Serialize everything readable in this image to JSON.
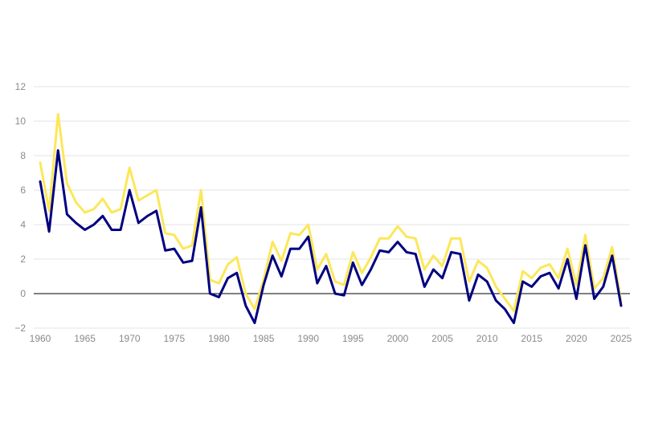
{
  "chart_data": {
    "type": "line",
    "title": "",
    "xlabel": "",
    "ylabel": "",
    "xlim": [
      1960,
      2025
    ],
    "ylim": [
      -2,
      12
    ],
    "x_ticks": [
      1960,
      1965,
      1970,
      1975,
      1980,
      1985,
      1990,
      1995,
      2000,
      2005,
      2010,
      2015,
      2020,
      2025
    ],
    "y_ticks": [
      -2,
      0,
      2,
      4,
      6,
      8,
      10,
      12
    ],
    "y_tick_labels": [
      "−2",
      "0",
      "2",
      "4",
      "6",
      "8",
      "10",
      "12"
    ],
    "grid": true,
    "zero_line": true,
    "legend": "none",
    "x": [
      1960,
      1961,
      1962,
      1963,
      1964,
      1965,
      1966,
      1967,
      1968,
      1969,
      1970,
      1971,
      1972,
      1973,
      1974,
      1975,
      1976,
      1977,
      1978,
      1979,
      1980,
      1981,
      1982,
      1983,
      1984,
      1985,
      1986,
      1987,
      1988,
      1989,
      1990,
      1991,
      1992,
      1993,
      1994,
      1995,
      1996,
      1997,
      1998,
      1999,
      2000,
      2001,
      2002,
      2003,
      2004,
      2005,
      2006,
      2007,
      2008,
      2009,
      2010,
      2011,
      2012,
      2013,
      2014,
      2015,
      2016,
      2017,
      2018,
      2019,
      2020,
      2021,
      2022,
      2023,
      2024,
      2025
    ],
    "series": [
      {
        "color": "#fce75a",
        "values": [
          7.6,
          4.8,
          10.4,
          6.4,
          5.3,
          4.7,
          4.9,
          5.5,
          4.7,
          4.9,
          7.3,
          5.4,
          5.7,
          6.0,
          3.5,
          3.4,
          2.6,
          2.8,
          6.0,
          0.8,
          0.6,
          1.7,
          2.1,
          0.0,
          -0.9,
          0.8,
          3.0,
          1.9,
          3.5,
          3.4,
          4.0,
          1.4,
          2.3,
          0.7,
          0.5,
          2.4,
          1.2,
          2.1,
          3.2,
          3.2,
          3.9,
          3.3,
          3.2,
          1.4,
          2.2,
          1.6,
          3.2,
          3.2,
          0.7,
          1.9,
          1.5,
          0.4,
          -0.3,
          -1.0,
          1.3,
          0.9,
          1.5,
          1.7,
          0.9,
          2.6,
          0.5,
          3.4,
          0.3,
          0.9,
          2.7,
          -0.5
        ]
      },
      {
        "color": "#000080",
        "values": [
          6.5,
          3.6,
          8.3,
          4.6,
          4.1,
          3.7,
          4.0,
          4.5,
          3.7,
          3.7,
          6.0,
          4.1,
          4.5,
          4.8,
          2.5,
          2.6,
          1.8,
          1.9,
          5.0,
          0.0,
          -0.2,
          0.9,
          1.2,
          -0.7,
          -1.7,
          0.5,
          2.2,
          1.0,
          2.6,
          2.6,
          3.3,
          0.6,
          1.6,
          0.0,
          -0.1,
          1.8,
          0.5,
          1.4,
          2.5,
          2.4,
          3.0,
          2.4,
          2.3,
          0.4,
          1.4,
          0.9,
          2.4,
          2.3,
          -0.4,
          1.1,
          0.7,
          -0.4,
          -0.9,
          -1.7,
          0.7,
          0.4,
          1.0,
          1.2,
          0.3,
          2.0,
          -0.3,
          2.8,
          -0.3,
          0.4,
          2.2,
          -0.7
        ]
      }
    ]
  }
}
